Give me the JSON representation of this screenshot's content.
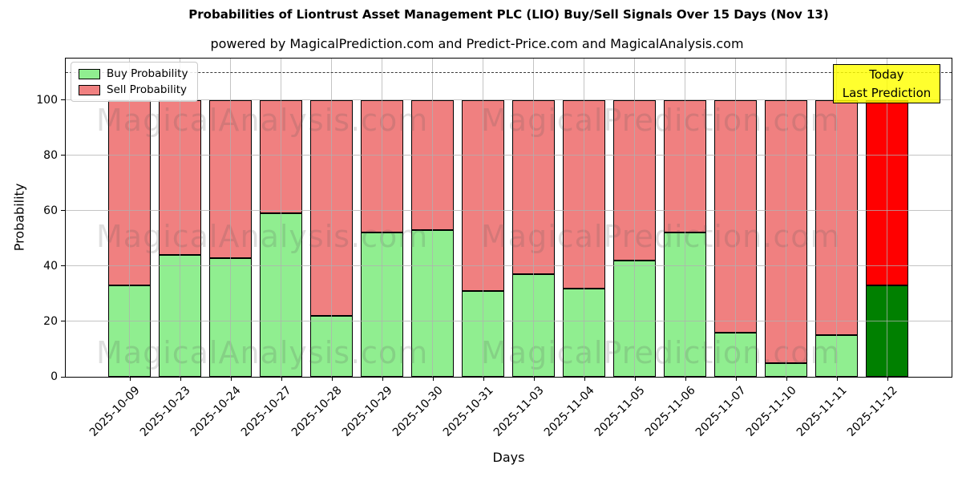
{
  "title": "Probabilities of Liontrust Asset Management PLC (LIO) Buy/Sell Signals Over 15 Days (Nov 13)",
  "subtitle": "powered by MagicalPrediction.com and Predict-Price.com and MagicalAnalysis.com",
  "legend": {
    "items": [
      {
        "label": "Buy Probability",
        "color": "#90EE90"
      },
      {
        "label": "Sell Probability",
        "color": "#F08080"
      }
    ]
  },
  "annotation": {
    "line1": "Today",
    "line2": "Last Prediction",
    "bg_color": "rgba(255,255,0,0.82)"
  },
  "watermarks": {
    "left_text": "MagicalAnalysis.com",
    "right_text": "MagicalPrediction.com"
  },
  "axes": {
    "xlabel": "Days",
    "ylabel": "Probability"
  },
  "chart_data": {
    "type": "bar",
    "stacked": true,
    "title": "Probabilities of Liontrust Asset Management PLC (LIO) Buy/Sell Signals Over 15 Days (Nov 13)",
    "xlabel": "Days",
    "ylabel": "Probability",
    "categories": [
      "2025-10-09",
      "2025-10-23",
      "2025-10-24",
      "2025-10-27",
      "2025-10-28",
      "2025-10-29",
      "2025-10-30",
      "2025-10-31",
      "2025-11-03",
      "2025-11-04",
      "2025-11-05",
      "2025-11-06",
      "2025-11-07",
      "2025-11-10",
      "2025-11-11",
      "2025-11-12"
    ],
    "series": [
      {
        "name": "Buy Probability",
        "color": "#90EE90",
        "values": [
          33,
          44,
          43,
          59,
          22,
          52,
          53,
          31,
          37,
          32,
          42,
          52,
          16,
          5,
          15,
          33
        ]
      },
      {
        "name": "Sell Probability",
        "color": "#F08080",
        "values": [
          67,
          56,
          57,
          41,
          78,
          48,
          47,
          69,
          63,
          68,
          58,
          48,
          84,
          95,
          85,
          67
        ]
      }
    ],
    "last_bar_colors": {
      "buy": "#008000",
      "sell": "#FF0000"
    },
    "yticks": [
      0,
      20,
      40,
      60,
      80,
      100
    ],
    "ylim": [
      0,
      115
    ],
    "dashed_line_y": 110,
    "grid": true,
    "legend_position": "upper-left"
  }
}
